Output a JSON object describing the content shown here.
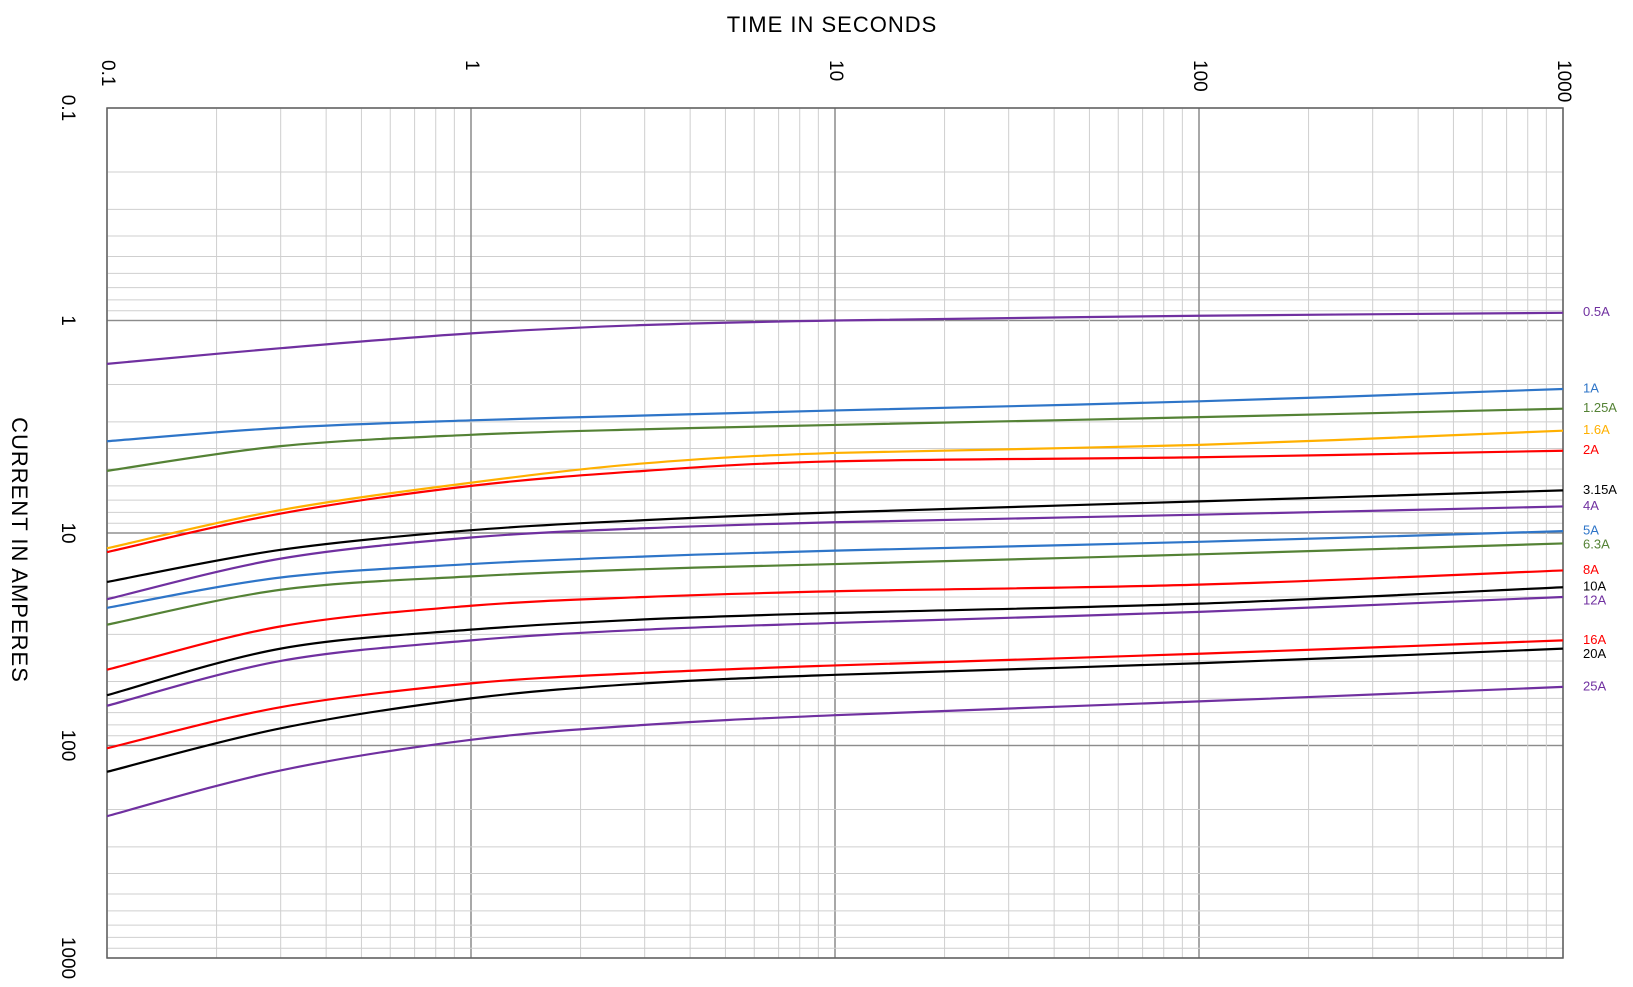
{
  "chart_data": {
    "type": "line",
    "title": "",
    "xlabel": "TIME IN SECONDS",
    "ylabel": "CURRENT IN AMPERES",
    "x_scale": "log",
    "y_scale": "log",
    "xlim": [
      0.1,
      1000
    ],
    "ylim": [
      0.1,
      1000
    ],
    "y_inverted": true,
    "x_tick_labels": [
      "0.1",
      "1",
      "10",
      "100",
      "1000"
    ],
    "y_tick_labels": [
      "0.1",
      "1",
      "10",
      "100",
      "1000"
    ],
    "x_ticks": [
      0.1,
      1,
      10,
      100,
      1000
    ],
    "y_ticks": [
      0.1,
      1,
      10,
      100,
      1000
    ],
    "grid": true,
    "legend": "labels at right end of each curve",
    "x": [
      0.1,
      0.3,
      1,
      3,
      10,
      100,
      1000
    ],
    "series": [
      {
        "name": "0.5A",
        "color": "#7030A0",
        "values": [
          1.6,
          1.35,
          1.15,
          1.05,
          1.0,
          0.95,
          0.92
        ]
      },
      {
        "name": "1A",
        "color": "#2E75C8",
        "values": [
          3.7,
          3.2,
          2.95,
          2.8,
          2.65,
          2.4,
          2.1
        ]
      },
      {
        "name": "1.25A",
        "color": "#548235",
        "values": [
          5.1,
          3.9,
          3.45,
          3.25,
          3.1,
          2.85,
          2.6
        ]
      },
      {
        "name": "1.6A",
        "color": "#FFB000",
        "values": [
          11.8,
          7.8,
          5.8,
          4.7,
          4.2,
          3.85,
          3.3
        ]
      },
      {
        "name": "2A",
        "color": "#FF0000",
        "values": [
          12.3,
          8.1,
          6.0,
          5.1,
          4.6,
          4.4,
          4.1
        ]
      },
      {
        "name": "3.15A",
        "color": "#000000",
        "values": [
          17.0,
          12.0,
          9.7,
          8.7,
          8.0,
          7.1,
          6.3
        ]
      },
      {
        "name": "4A",
        "color": "#7030A0",
        "values": [
          20.5,
          13.2,
          10.5,
          9.5,
          8.9,
          8.2,
          7.5
        ]
      },
      {
        "name": "5A",
        "color": "#2E75C8",
        "values": [
          22.5,
          16.2,
          14.0,
          12.9,
          12.1,
          11.0,
          9.8
        ]
      },
      {
        "name": "6.3A",
        "color": "#548235",
        "values": [
          27.0,
          18.5,
          16.0,
          14.8,
          14.0,
          12.6,
          11.2
        ]
      },
      {
        "name": "8A",
        "color": "#FF0000",
        "values": [
          44.0,
          27.5,
          22.0,
          20.0,
          18.8,
          17.5,
          15.0
        ]
      },
      {
        "name": "10A",
        "color": "#000000",
        "values": [
          58.0,
          35.0,
          28.5,
          25.5,
          23.8,
          21.5,
          18.0
        ]
      },
      {
        "name": "12A",
        "color": "#7030A0",
        "values": [
          65.0,
          40.0,
          32.0,
          28.5,
          26.5,
          23.5,
          20.0
        ]
      },
      {
        "name": "16A",
        "color": "#FF0000",
        "values": [
          103.0,
          66.0,
          51.0,
          45.5,
          42.0,
          37.0,
          32.0
        ]
      },
      {
        "name": "20A",
        "color": "#000000",
        "values": [
          133.0,
          83.0,
          60.0,
          51.0,
          46.5,
          41.0,
          35.0
        ]
      },
      {
        "name": "25A",
        "color": "#7030A0",
        "values": [
          215.0,
          131.0,
          94.0,
          80.0,
          72.0,
          62.0,
          53.0
        ]
      }
    ]
  }
}
